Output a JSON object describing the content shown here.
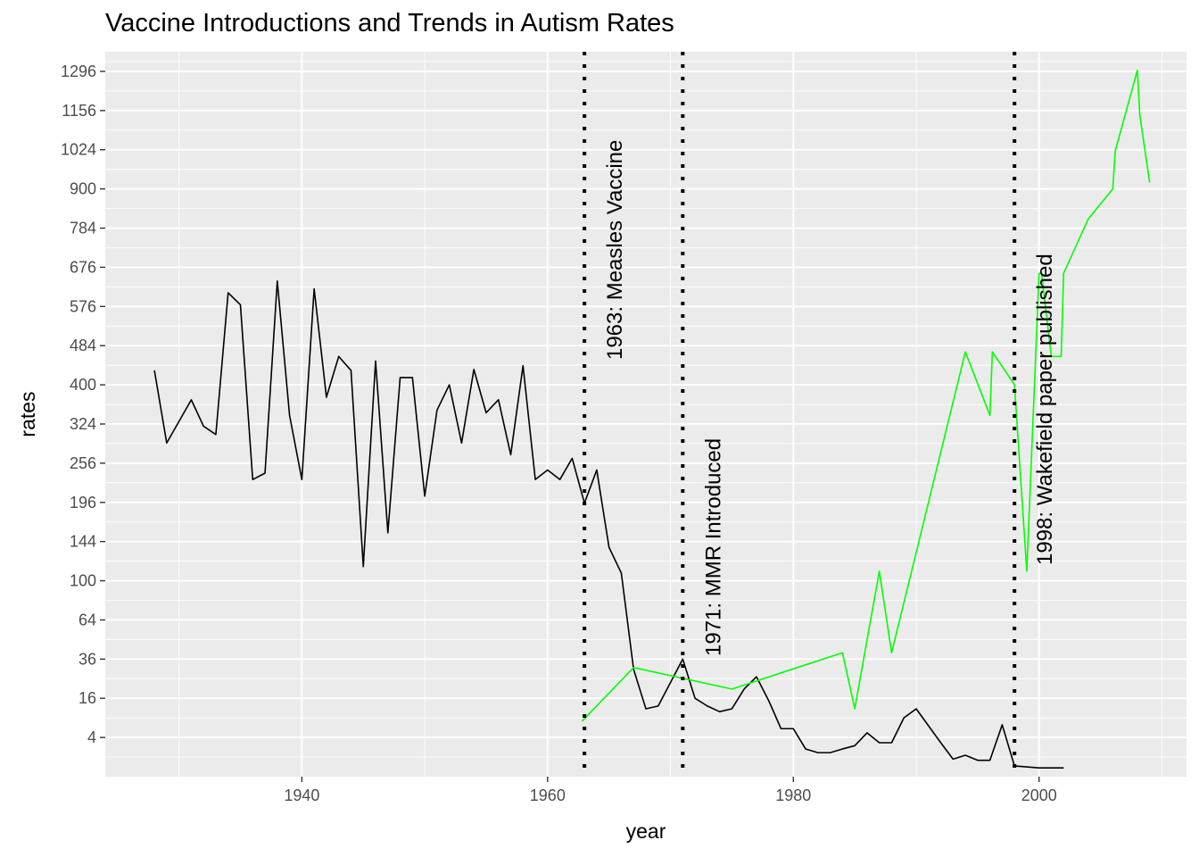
{
  "chart_data": {
    "type": "line",
    "title": "Vaccine Introductions and Trends in Autism Rates",
    "xlabel": "year",
    "ylabel": "rates",
    "xlim": [
      1924,
      2012
    ],
    "x_ticks": [
      1940,
      1960,
      1980,
      2000
    ],
    "y_scale": "sqrt",
    "ylim": [
      0,
      1369
    ],
    "y_ticks": [
      4,
      16,
      36,
      64,
      100,
      144,
      196,
      256,
      324,
      400,
      484,
      576,
      676,
      784,
      900,
      1024,
      1156,
      1296
    ],
    "grid": true,
    "legend": "none",
    "colors": {
      "panel": "#EBEBEB",
      "grid": "#FFFFFF",
      "measles": "#000000",
      "autism": "#00FF00",
      "vline": "#000000"
    },
    "series": [
      {
        "color": "#000000",
        "x": [
          1928,
          1929,
          1931,
          1932,
          1933,
          1934,
          1935,
          1936,
          1937,
          1938,
          1939,
          1940,
          1941,
          1942,
          1943,
          1944,
          1945,
          1946,
          1947,
          1948,
          1949,
          1950,
          1951,
          1952,
          1953,
          1954,
          1955,
          1956,
          1957,
          1958,
          1959,
          1960,
          1961,
          1962,
          1963,
          1964,
          1965,
          1966,
          1967,
          1968,
          1969,
          1971,
          1972,
          1973,
          1974,
          1975,
          1976,
          1977,
          1978,
          1979,
          1980,
          1981,
          1982,
          1983,
          1984,
          1985,
          1986,
          1987,
          1988,
          1989,
          1990,
          1992,
          1993,
          1994,
          1995,
          1996,
          1997,
          1998,
          2000,
          2002
        ],
        "y": [
          430,
          290,
          370,
          320,
          305,
          610,
          580,
          230,
          240,
          640,
          340,
          230,
          620,
          375,
          460,
          430,
          115,
          450,
          155,
          415,
          415,
          205,
          350,
          400,
          290,
          432,
          345,
          370,
          270,
          440,
          230,
          245,
          230,
          264,
          195,
          245,
          137,
          108,
          30,
          12,
          13,
          36,
          16,
          13,
          11,
          12,
          20,
          26,
          15,
          6,
          6,
          2,
          1.5,
          1.5,
          2,
          2.5,
          5,
          3,
          3,
          9,
          12,
          3,
          0.8,
          1.2,
          0.7,
          0.7,
          7,
          0.3,
          0.2,
          0.2
        ]
      },
      {
        "color": "#00FF00",
        "x": [
          1962.8,
          1967,
          1975,
          1984,
          1985,
          1987,
          1988,
          1994,
          1996,
          1996.2,
          1998,
          1999,
          2000,
          2000.2,
          2001,
          2001.8,
          2002,
          2004,
          2006,
          2006.2,
          2008,
          2008.2,
          2009
        ],
        "y": [
          8,
          31,
          20,
          40,
          12,
          110,
          40,
          470,
          340,
          470,
          400,
          110,
          660,
          660,
          460,
          460,
          660,
          810,
          900,
          1020,
          1300,
          1140,
          920
        ]
      }
    ],
    "vlines": [
      {
        "x": 1963,
        "label": "1963: Measles Vaccine"
      },
      {
        "x": 1971,
        "label": "1971: MMR Introduced"
      },
      {
        "x": 1998,
        "label": "1998: Wakefield paper published"
      }
    ]
  }
}
